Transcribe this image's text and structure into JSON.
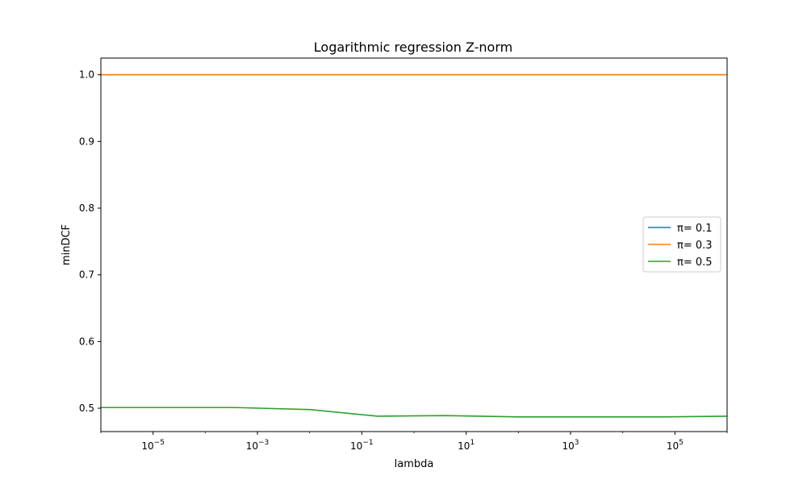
{
  "chart_data": {
    "type": "line",
    "title": "Logarithmic regression Z-norm",
    "xlabel": "lambda",
    "ylabel": "minDCF",
    "x_scale": "log",
    "xlim": [
      1e-06,
      1000000
    ],
    "ylim": [
      0.465,
      1.025
    ],
    "x_ticks": [
      {
        "value": 1e-05,
        "base": "10",
        "exp": "−5"
      },
      {
        "value": 0.001,
        "base": "10",
        "exp": "−3"
      },
      {
        "value": 0.1,
        "base": "10",
        "exp": "−1"
      },
      {
        "value": 10,
        "base": "10",
        "exp": "1"
      },
      {
        "value": 1000,
        "base": "10",
        "exp": "3"
      },
      {
        "value": 100000,
        "base": "10",
        "exp": "5"
      }
    ],
    "y_ticks": [
      {
        "value": 0.5,
        "label": "0.5"
      },
      {
        "value": 0.6,
        "label": "0.6"
      },
      {
        "value": 0.7,
        "label": "0.7"
      },
      {
        "value": 0.8,
        "label": "0.8"
      },
      {
        "value": 0.9,
        "label": "0.9"
      },
      {
        "value": 1.0,
        "label": "1.0"
      }
    ],
    "x": [
      1e-06,
      0.0004,
      0.01,
      0.2,
      4,
      100,
      2500,
      60000,
      1000000
    ],
    "series": [
      {
        "name": "π= 0.1",
        "color": "#1f77b4",
        "values": [
          1.0,
          1.0,
          1.0,
          1.0,
          1.0,
          1.0,
          1.0,
          1.0,
          1.0
        ]
      },
      {
        "name": "π= 0.3",
        "color": "#ff7f0e",
        "values": [
          1.0,
          1.0,
          1.0,
          1.0,
          1.0,
          1.0,
          1.0,
          1.0,
          1.0
        ]
      },
      {
        "name": "π= 0.5",
        "color": "#2ca02c",
        "values": [
          0.501,
          0.501,
          0.498,
          0.488,
          0.489,
          0.487,
          0.487,
          0.487,
          0.488
        ]
      }
    ],
    "legend": {
      "position": "center-right"
    },
    "grid": false
  }
}
